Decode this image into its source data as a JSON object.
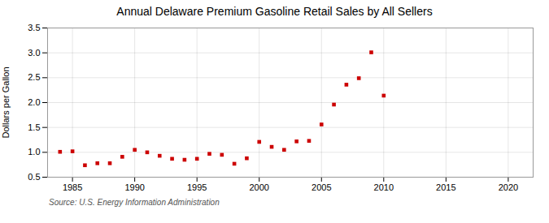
{
  "chart_data": {
    "type": "scatter",
    "title": "Annual Delaware Premium Gasoline Retail Sales by All Sellers",
    "ylabel": "Dollars per Gallon",
    "source": "Source: U.S. Energy Information Administration",
    "x": [
      1984,
      1985,
      1986,
      1987,
      1988,
      1989,
      1990,
      1991,
      1992,
      1993,
      1994,
      1995,
      1996,
      1997,
      1998,
      1999,
      2000,
      2001,
      2002,
      2003,
      2004,
      2005,
      2006,
      2007,
      2008,
      2009,
      2010
    ],
    "values": [
      1.01,
      1.02,
      0.74,
      0.78,
      0.78,
      0.91,
      1.05,
      1.0,
      0.93,
      0.87,
      0.85,
      0.87,
      0.97,
      0.95,
      0.77,
      0.88,
      1.21,
      1.11,
      1.05,
      1.22,
      1.23,
      1.56,
      1.96,
      2.36,
      2.49,
      3.01,
      2.14
    ],
    "color": "#cc0000",
    "marker": "square",
    "xlim": [
      1983,
      2022
    ],
    "xticks": [
      1985,
      1990,
      1995,
      2000,
      2005,
      2010,
      2015,
      2020
    ],
    "ylim": [
      0.5,
      3.5
    ],
    "yticks": [
      0.5,
      {
        "value": 1.0,
        "label": "1.0"
      },
      1.5,
      {
        "value": 2.0,
        "label": "2.0"
      },
      2.5,
      {
        "value": 3.0,
        "label": "3.0"
      },
      3.5
    ],
    "grid": true
  }
}
